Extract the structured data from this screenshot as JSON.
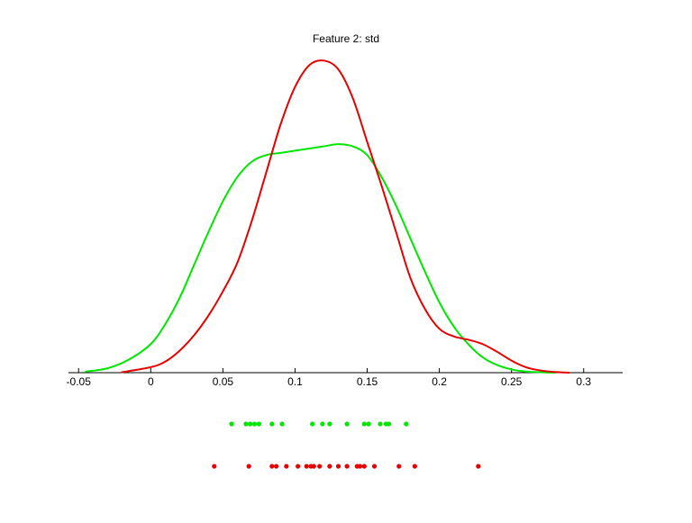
{
  "chart_data": {
    "type": "line",
    "title": "Feature 2: std",
    "xlabel": "",
    "ylabel": "",
    "xlim": [
      -0.057,
      0.327
    ],
    "ylim": [
      0,
      14.5
    ],
    "x_ticks": [
      -0.05,
      0,
      0.05,
      0.1,
      0.15,
      0.2,
      0.25,
      0.3
    ],
    "x_tick_labels": [
      "-0.05",
      "0",
      "0.05",
      "0.1",
      "0.15",
      "0.2",
      "0.25",
      "0.3"
    ],
    "y_axis_visible": false,
    "grid": false,
    "legend": "none",
    "series": [
      {
        "color": "#00e600",
        "x": [
          -0.045,
          -0.03,
          -0.015,
          0,
          0.01,
          0.02,
          0.03,
          0.04,
          0.05,
          0.06,
          0.07,
          0.08,
          0.09,
          0.1,
          0.11,
          0.12,
          0.13,
          0.14,
          0.15,
          0.16,
          0.17,
          0.18,
          0.19,
          0.2,
          0.21,
          0.22,
          0.23,
          0.24,
          0.25,
          0.26,
          0.27,
          0.28
        ],
        "y": [
          0.05,
          0.2,
          0.6,
          1.3,
          2.2,
          3.4,
          4.9,
          6.4,
          7.8,
          8.9,
          9.6,
          9.9,
          10.0,
          10.1,
          10.2,
          10.3,
          10.4,
          10.3,
          9.9,
          8.9,
          7.6,
          6.1,
          4.6,
          3.2,
          2.1,
          1.3,
          0.7,
          0.35,
          0.15,
          0.05,
          0.02,
          0.0
        ]
      },
      {
        "color": "#e60000",
        "x": [
          -0.02,
          0,
          0.01,
          0.02,
          0.03,
          0.04,
          0.05,
          0.06,
          0.07,
          0.08,
          0.09,
          0.1,
          0.11,
          0.12,
          0.13,
          0.14,
          0.15,
          0.16,
          0.17,
          0.18,
          0.19,
          0.2,
          0.21,
          0.22,
          0.23,
          0.24,
          0.25,
          0.26,
          0.27,
          0.28,
          0.29
        ],
        "y": [
          0.02,
          0.25,
          0.5,
          1.0,
          1.7,
          2.6,
          3.7,
          5.0,
          6.9,
          9.1,
          11.3,
          13.0,
          14.0,
          14.2,
          13.8,
          12.5,
          10.5,
          8.5,
          6.4,
          4.3,
          2.9,
          2.0,
          1.65,
          1.5,
          1.3,
          0.95,
          0.55,
          0.25,
          0.1,
          0.03,
          0.0
        ]
      }
    ],
    "rug": [
      {
        "color": "#00e600",
        "values": [
          0.056,
          0.066,
          0.069,
          0.072,
          0.075,
          0.084,
          0.091,
          0.112,
          0.119,
          0.124,
          0.136,
          0.148,
          0.151,
          0.159,
          0.163,
          0.165,
          0.177
        ]
      },
      {
        "color": "#e60000",
        "values": [
          0.044,
          0.068,
          0.084,
          0.087,
          0.094,
          0.102,
          0.108,
          0.111,
          0.113,
          0.117,
          0.124,
          0.13,
          0.136,
          0.143,
          0.145,
          0.148,
          0.155,
          0.172,
          0.183,
          0.227
        ]
      }
    ]
  }
}
